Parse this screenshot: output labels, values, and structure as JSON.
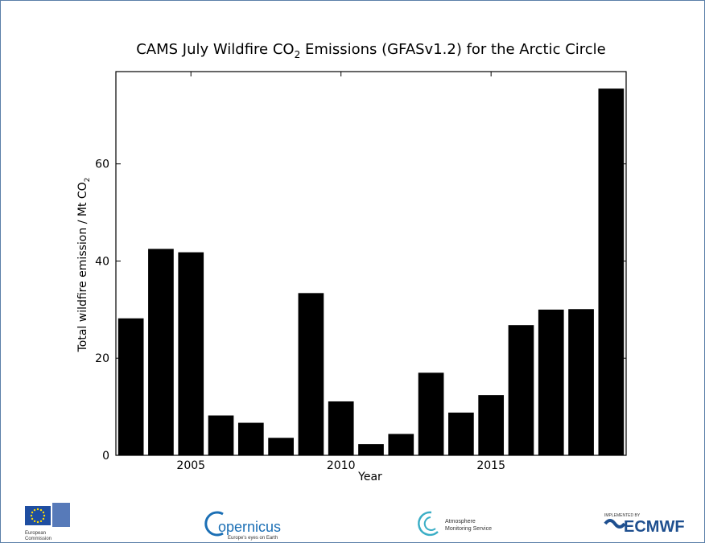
{
  "chart_data": {
    "type": "bar",
    "title_parts": [
      "CAMS  July Wildfire CO",
      "2",
      " Emissions  (GFASv1.2) for the Arctic Circle"
    ],
    "xlabel": "Year",
    "ylabel_parts": [
      "Total wildfire emission / Mt CO",
      "2"
    ],
    "x": [
      2003,
      2004,
      2005,
      2006,
      2007,
      2008,
      2009,
      2010,
      2011,
      2012,
      2013,
      2014,
      2015,
      2016,
      2017,
      2018,
      2019
    ],
    "values": [
      28.2,
      42.5,
      41.8,
      8.2,
      6.7,
      3.6,
      33.4,
      11.1,
      2.3,
      4.4,
      17.0,
      8.8,
      12.4,
      26.8,
      30.0,
      30.1,
      75.5
    ],
    "xlim": [
      2002.5,
      2019.5
    ],
    "ylim": [
      0,
      79
    ],
    "xticks": [
      2005,
      2010,
      2015
    ],
    "yticks": [
      0,
      20,
      40,
      60
    ],
    "bar_color": "#000000"
  },
  "logos": {
    "eu_label_1": "European",
    "eu_label_2": "Commission",
    "copernicus_name": "opernicus",
    "copernicus_tagline": "Europe's eyes on Earth",
    "atmosphere_line1": "Atmosphere",
    "atmosphere_line2": "Monitoring Service",
    "ecmwf_caption": "IMPLEMENTED BY",
    "ecmwf_name": "ECMWF"
  },
  "colors": {
    "frame": "#5b7fa8",
    "eu_blue": "#1f4ea1",
    "eu_star": "#ffdd00",
    "copernicus": "#1b6fb5",
    "atmosphere": "#3aaec6",
    "ecmwf": "#1e4f8f"
  }
}
